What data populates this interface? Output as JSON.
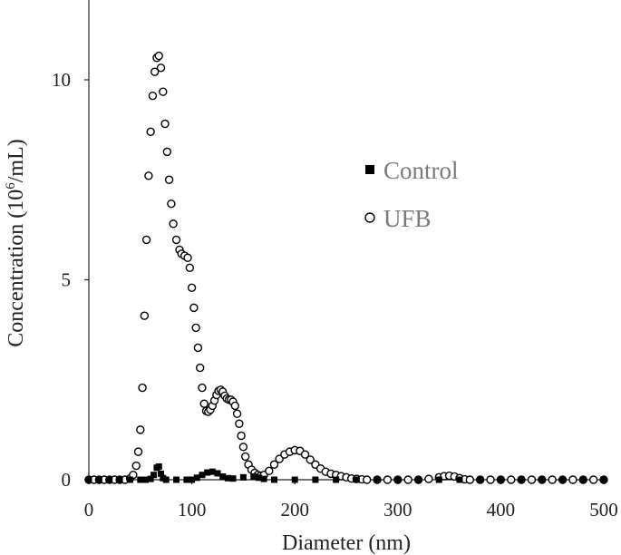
{
  "chart_data": {
    "type": "scatter",
    "xlabel": "Diameter (nm)",
    "ylabel_main": "Concentration (10",
    "ylabel_sup": "6",
    "ylabel_tail": "/mL)",
    "xlim": [
      0,
      500
    ],
    "ylim": [
      0,
      12
    ],
    "xticks": [
      0,
      100,
      200,
      300,
      400,
      500
    ],
    "yticks": [
      0,
      5,
      10
    ],
    "xtick_labels": [
      "0",
      "100",
      "200",
      "300",
      "400",
      "500"
    ],
    "ytick_labels": [
      "0",
      "5",
      "10"
    ],
    "grid": false,
    "legend_position": "right",
    "series": [
      {
        "name": "Control",
        "marker": "filled-square",
        "color": "#000000",
        "points": [
          [
            0,
            0
          ],
          [
            10,
            0
          ],
          [
            20,
            0
          ],
          [
            30,
            0
          ],
          [
            40,
            0
          ],
          [
            50,
            0
          ],
          [
            55,
            0
          ],
          [
            60,
            0.02
          ],
          [
            63,
            0.12
          ],
          [
            66,
            0.3
          ],
          [
            68,
            0.33
          ],
          [
            70,
            0.15
          ],
          [
            72,
            0.04
          ],
          [
            75,
            0
          ],
          [
            85,
            0
          ],
          [
            95,
            0
          ],
          [
            100,
            0
          ],
          [
            105,
            0.05
          ],
          [
            110,
            0.12
          ],
          [
            115,
            0.18
          ],
          [
            120,
            0.2
          ],
          [
            125,
            0.16
          ],
          [
            130,
            0.08
          ],
          [
            135,
            0.04
          ],
          [
            140,
            0.03
          ],
          [
            150,
            0.06
          ],
          [
            160,
            0.08
          ],
          [
            165,
            0.05
          ],
          [
            170,
            0.02
          ],
          [
            180,
            0
          ],
          [
            200,
            0
          ],
          [
            220,
            0
          ],
          [
            240,
            0
          ],
          [
            260,
            0
          ],
          [
            280,
            0
          ],
          [
            300,
            0
          ],
          [
            320,
            0
          ],
          [
            340,
            0
          ],
          [
            360,
            0
          ],
          [
            380,
            0
          ],
          [
            400,
            0
          ],
          [
            420,
            0
          ],
          [
            440,
            0
          ],
          [
            460,
            0
          ],
          [
            480,
            0
          ],
          [
            500,
            0
          ]
        ]
      },
      {
        "name": "UFB",
        "marker": "open-circle",
        "color": "#000000",
        "points": [
          [
            0,
            0
          ],
          [
            5,
            0
          ],
          [
            10,
            0
          ],
          [
            15,
            0
          ],
          [
            20,
            0
          ],
          [
            25,
            0
          ],
          [
            30,
            0
          ],
          [
            35,
            0
          ],
          [
            40,
            0.03
          ],
          [
            43,
            0.12
          ],
          [
            46,
            0.35
          ],
          [
            48,
            0.7
          ],
          [
            50,
            1.25
          ],
          [
            52,
            2.3
          ],
          [
            54,
            4.1
          ],
          [
            56,
            6.0
          ],
          [
            58,
            7.6
          ],
          [
            60,
            8.7
          ],
          [
            62,
            9.6
          ],
          [
            64,
            10.2
          ],
          [
            66,
            10.55
          ],
          [
            68,
            10.6
          ],
          [
            70,
            10.3
          ],
          [
            72,
            9.7
          ],
          [
            74,
            8.9
          ],
          [
            76,
            8.2
          ],
          [
            78,
            7.5
          ],
          [
            80,
            6.9
          ],
          [
            82,
            6.4
          ],
          [
            85,
            6.0
          ],
          [
            88,
            5.75
          ],
          [
            90,
            5.65
          ],
          [
            93,
            5.6
          ],
          [
            96,
            5.55
          ],
          [
            98,
            5.3
          ],
          [
            100,
            4.8
          ],
          [
            102,
            4.3
          ],
          [
            104,
            3.8
          ],
          [
            106,
            3.3
          ],
          [
            108,
            2.8
          ],
          [
            110,
            2.3
          ],
          [
            112,
            1.9
          ],
          [
            114,
            1.72
          ],
          [
            116,
            1.7
          ],
          [
            118,
            1.75
          ],
          [
            120,
            1.85
          ],
          [
            122,
            1.98
          ],
          [
            124,
            2.12
          ],
          [
            126,
            2.22
          ],
          [
            128,
            2.25
          ],
          [
            130,
            2.2
          ],
          [
            132,
            2.1
          ],
          [
            134,
            2.03
          ],
          [
            136,
            2.0
          ],
          [
            138,
            2.0
          ],
          [
            140,
            1.95
          ],
          [
            142,
            1.85
          ],
          [
            144,
            1.65
          ],
          [
            146,
            1.4
          ],
          [
            148,
            1.1
          ],
          [
            150,
            0.82
          ],
          [
            152,
            0.58
          ],
          [
            155,
            0.38
          ],
          [
            158,
            0.25
          ],
          [
            161,
            0.17
          ],
          [
            164,
            0.12
          ],
          [
            167,
            0.1
          ],
          [
            170,
            0.12
          ],
          [
            175,
            0.22
          ],
          [
            180,
            0.38
          ],
          [
            185,
            0.52
          ],
          [
            190,
            0.63
          ],
          [
            195,
            0.7
          ],
          [
            200,
            0.74
          ],
          [
            205,
            0.72
          ],
          [
            210,
            0.63
          ],
          [
            215,
            0.5
          ],
          [
            220,
            0.38
          ],
          [
            225,
            0.28
          ],
          [
            230,
            0.2
          ],
          [
            235,
            0.15
          ],
          [
            240,
            0.12
          ],
          [
            245,
            0.09
          ],
          [
            250,
            0.06
          ],
          [
            255,
            0.03
          ],
          [
            260,
            0.02
          ],
          [
            265,
            0.01
          ],
          [
            270,
            0
          ],
          [
            280,
            0
          ],
          [
            290,
            0
          ],
          [
            300,
            0
          ],
          [
            310,
            0
          ],
          [
            320,
            0
          ],
          [
            330,
            0.02
          ],
          [
            340,
            0.06
          ],
          [
            345,
            0.09
          ],
          [
            350,
            0.1
          ],
          [
            355,
            0.08
          ],
          [
            360,
            0.04
          ],
          [
            365,
            0.01
          ],
          [
            370,
            0
          ],
          [
            380,
            0
          ],
          [
            390,
            0
          ],
          [
            400,
            0
          ],
          [
            410,
            0
          ],
          [
            420,
            0
          ],
          [
            430,
            0
          ],
          [
            440,
            0
          ],
          [
            450,
            0
          ],
          [
            460,
            0
          ],
          [
            470,
            0
          ],
          [
            480,
            0
          ],
          [
            490,
            0
          ],
          [
            500,
            0
          ]
        ]
      }
    ]
  }
}
